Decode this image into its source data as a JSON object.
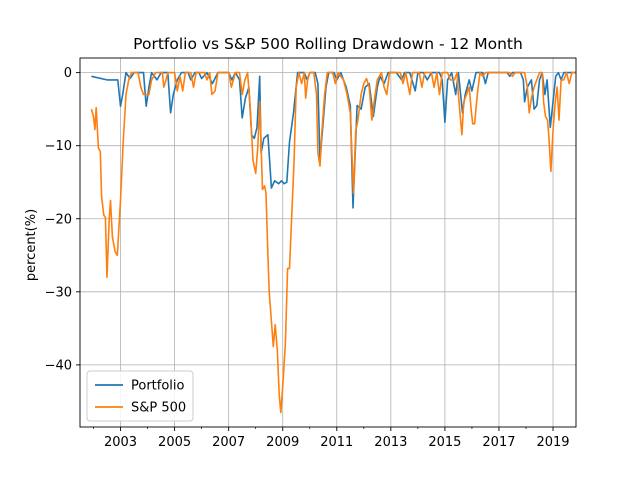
{
  "chart_data": {
    "type": "line",
    "title": "Portfolio vs S&P 500 Rolling Drawdown - 12 Month",
    "xlabel": "",
    "ylabel": "percent(%)",
    "xlim": [
      2001.5,
      2019.85
    ],
    "ylim": [
      -48.5,
      2
    ],
    "xticks": [
      2003,
      2005,
      2007,
      2009,
      2011,
      2013,
      2015,
      2017,
      2019
    ],
    "xtick_labels": [
      "2003",
      "2005",
      "2007",
      "2009",
      "2011",
      "2013",
      "2015",
      "2017",
      "2019"
    ],
    "yticks": [
      0,
      -10,
      -20,
      -30,
      -40
    ],
    "ytick_labels": [
      "0",
      "−10",
      "−20",
      "−30",
      "−40"
    ],
    "grid": true,
    "legend_position": "lower-left",
    "series": [
      {
        "name": "Portfolio",
        "color": "#1f77b4",
        "points": [
          [
            2001.92,
            -0.5
          ],
          [
            2002.5,
            -1.0
          ],
          [
            2002.9,
            -1.0
          ],
          [
            2003.0,
            -4.6
          ],
          [
            2003.08,
            -3.0
          ],
          [
            2003.2,
            0
          ],
          [
            2003.35,
            -0.8
          ],
          [
            2003.5,
            0
          ],
          [
            2003.85,
            0
          ],
          [
            2003.95,
            -4.6
          ],
          [
            2004.05,
            -2.0
          ],
          [
            2004.15,
            0
          ],
          [
            2004.35,
            -1.0
          ],
          [
            2004.5,
            0
          ],
          [
            2004.75,
            0
          ],
          [
            2004.85,
            -5.5
          ],
          [
            2004.95,
            -3.0
          ],
          [
            2005.1,
            -1.0
          ],
          [
            2005.25,
            0
          ],
          [
            2005.5,
            0
          ],
          [
            2005.6,
            -1.0
          ],
          [
            2005.75,
            0
          ],
          [
            2005.9,
            0
          ],
          [
            2006.0,
            -0.8
          ],
          [
            2006.2,
            0
          ],
          [
            2006.4,
            -1.5
          ],
          [
            2006.6,
            0
          ],
          [
            2007.0,
            0
          ],
          [
            2007.12,
            -1.0
          ],
          [
            2007.25,
            0
          ],
          [
            2007.4,
            -1.0
          ],
          [
            2007.5,
            -6.2
          ],
          [
            2007.62,
            -3.5
          ],
          [
            2007.75,
            -2.0
          ],
          [
            2007.85,
            -8.5
          ],
          [
            2007.95,
            -9.0
          ],
          [
            2008.05,
            -7.5
          ],
          [
            2008.15,
            -0.5
          ],
          [
            2008.2,
            -11.0
          ],
          [
            2008.3,
            -9.0
          ],
          [
            2008.45,
            -8.5
          ],
          [
            2008.58,
            -15.8
          ],
          [
            2008.7,
            -14.8
          ],
          [
            2008.85,
            -15.2
          ],
          [
            2008.95,
            -14.8
          ],
          [
            2009.05,
            -15.2
          ],
          [
            2009.15,
            -15.0
          ],
          [
            2009.25,
            -9.5
          ],
          [
            2009.4,
            -5.5
          ],
          [
            2009.55,
            0
          ],
          [
            2009.8,
            0
          ],
          [
            2009.9,
            -1.0
          ],
          [
            2010.0,
            0
          ],
          [
            2010.2,
            0
          ],
          [
            2010.3,
            -1.5
          ],
          [
            2010.38,
            -12.0
          ],
          [
            2010.5,
            -6.5
          ],
          [
            2010.6,
            -2.0
          ],
          [
            2010.7,
            0
          ],
          [
            2010.9,
            0
          ],
          [
            2011.0,
            -1.0
          ],
          [
            2011.15,
            0
          ],
          [
            2011.35,
            -2.0
          ],
          [
            2011.5,
            -4.5
          ],
          [
            2011.6,
            -18.5
          ],
          [
            2011.75,
            -4.5
          ],
          [
            2011.9,
            -5.0
          ],
          [
            2012.05,
            -2.0
          ],
          [
            2012.2,
            -1.5
          ],
          [
            2012.35,
            -6.0
          ],
          [
            2012.5,
            -2.0
          ],
          [
            2012.6,
            -0.5
          ],
          [
            2012.75,
            -1.5
          ],
          [
            2012.9,
            0
          ],
          [
            2013.2,
            0
          ],
          [
            2013.4,
            -1.0
          ],
          [
            2013.5,
            0
          ],
          [
            2013.7,
            0
          ],
          [
            2013.9,
            -2.5
          ],
          [
            2014.0,
            0
          ],
          [
            2014.2,
            0
          ],
          [
            2014.35,
            -1.0
          ],
          [
            2014.5,
            0
          ],
          [
            2014.8,
            0
          ],
          [
            2014.9,
            -1.0
          ],
          [
            2015.0,
            -6.8
          ],
          [
            2015.1,
            -1.0
          ],
          [
            2015.25,
            0
          ],
          [
            2015.4,
            -3.0
          ],
          [
            2015.5,
            0
          ],
          [
            2015.65,
            -5.5
          ],
          [
            2015.75,
            -3.0
          ],
          [
            2015.9,
            -1.0
          ],
          [
            2016.0,
            -2.5
          ],
          [
            2016.15,
            0
          ],
          [
            2016.4,
            0
          ],
          [
            2016.5,
            -1.5
          ],
          [
            2016.6,
            0
          ],
          [
            2017.0,
            0
          ],
          [
            2017.3,
            0
          ],
          [
            2017.4,
            -0.5
          ],
          [
            2017.5,
            0
          ],
          [
            2017.8,
            0
          ],
          [
            2017.9,
            -1.0
          ],
          [
            2017.95,
            -4.0
          ],
          [
            2018.05,
            -2.0
          ],
          [
            2018.2,
            -1.0
          ],
          [
            2018.3,
            -5.0
          ],
          [
            2018.4,
            -4.5
          ],
          [
            2018.5,
            -1.0
          ],
          [
            2018.6,
            0
          ],
          [
            2018.7,
            -3.0
          ],
          [
            2018.78,
            -1.0
          ],
          [
            2018.9,
            -7.5
          ],
          [
            2019.0,
            -4.0
          ],
          [
            2019.1,
            -0.5
          ],
          [
            2019.2,
            0
          ],
          [
            2019.3,
            -1.0
          ],
          [
            2019.4,
            0
          ],
          [
            2019.6,
            0
          ],
          [
            2019.85,
            0
          ]
        ]
      },
      {
        "name": "S&P 500",
        "color": "#ff7f0e",
        "points": [
          [
            2001.92,
            -5.0
          ],
          [
            2002.0,
            -6.0
          ],
          [
            2002.05,
            -7.8
          ],
          [
            2002.1,
            -4.8
          ],
          [
            2002.18,
            -10.3
          ],
          [
            2002.25,
            -10.8
          ],
          [
            2002.3,
            -17.0
          ],
          [
            2002.38,
            -19.5
          ],
          [
            2002.44,
            -19.8
          ],
          [
            2002.5,
            -28.0
          ],
          [
            2002.58,
            -20.0
          ],
          [
            2002.63,
            -17.5
          ],
          [
            2002.7,
            -22.5
          ],
          [
            2002.8,
            -24.5
          ],
          [
            2002.88,
            -25.0
          ],
          [
            2003.0,
            -17.5
          ],
          [
            2003.1,
            -9.5
          ],
          [
            2003.2,
            -3.0
          ],
          [
            2003.3,
            -1.0
          ],
          [
            2003.4,
            0
          ],
          [
            2003.5,
            0
          ],
          [
            2003.65,
            0
          ],
          [
            2003.75,
            -2.0
          ],
          [
            2003.85,
            -3.0
          ],
          [
            2004.05,
            -3.0
          ],
          [
            2004.15,
            -1.0
          ],
          [
            2004.3,
            0
          ],
          [
            2004.55,
            0
          ],
          [
            2004.6,
            -2.0
          ],
          [
            2004.68,
            -1.0
          ],
          [
            2004.75,
            0
          ],
          [
            2005.0,
            0
          ],
          [
            2005.1,
            -2.5
          ],
          [
            2005.2,
            -0.5
          ],
          [
            2005.3,
            -2.5
          ],
          [
            2005.4,
            0
          ],
          [
            2005.6,
            0
          ],
          [
            2005.7,
            -2.0
          ],
          [
            2005.8,
            0
          ],
          [
            2006.1,
            0
          ],
          [
            2006.2,
            -1.0
          ],
          [
            2006.3,
            0
          ],
          [
            2006.38,
            -3.0
          ],
          [
            2006.5,
            -2.5
          ],
          [
            2006.6,
            0
          ],
          [
            2006.75,
            0
          ],
          [
            2007.0,
            0
          ],
          [
            2007.1,
            -2.0
          ],
          [
            2007.25,
            0
          ],
          [
            2007.4,
            0
          ],
          [
            2007.5,
            -3.0
          ],
          [
            2007.6,
            -1.0
          ],
          [
            2007.7,
            0
          ],
          [
            2007.8,
            -5.0
          ],
          [
            2007.9,
            -12.0
          ],
          [
            2008.0,
            -13.8
          ],
          [
            2008.08,
            -10.0
          ],
          [
            2008.15,
            -4.0
          ],
          [
            2008.25,
            -16.0
          ],
          [
            2008.33,
            -15.5
          ],
          [
            2008.38,
            -16.5
          ],
          [
            2008.45,
            -25.0
          ],
          [
            2008.5,
            -30.0
          ],
          [
            2008.58,
            -34.0
          ],
          [
            2008.65,
            -37.5
          ],
          [
            2008.72,
            -34.5
          ],
          [
            2008.8,
            -38.0
          ],
          [
            2008.87,
            -44.0
          ],
          [
            2008.93,
            -46.5
          ],
          [
            2009.0,
            -43.0
          ],
          [
            2009.1,
            -37.0
          ],
          [
            2009.18,
            -26.8
          ],
          [
            2009.25,
            -26.8
          ],
          [
            2009.33,
            -20.0
          ],
          [
            2009.42,
            -12.0
          ],
          [
            2009.5,
            -2.0
          ],
          [
            2009.6,
            0
          ],
          [
            2009.7,
            -1.5
          ],
          [
            2009.8,
            0
          ],
          [
            2009.85,
            -3.5
          ],
          [
            2009.92,
            -1.0
          ],
          [
            2010.0,
            0
          ],
          [
            2010.15,
            0
          ],
          [
            2010.25,
            -3.0
          ],
          [
            2010.3,
            -11.0
          ],
          [
            2010.38,
            -12.8
          ],
          [
            2010.45,
            -8.0
          ],
          [
            2010.55,
            -3.0
          ],
          [
            2010.65,
            0
          ],
          [
            2010.85,
            0
          ],
          [
            2010.95,
            -1.5
          ],
          [
            2011.05,
            0
          ],
          [
            2011.25,
            -1.0
          ],
          [
            2011.38,
            -3.0
          ],
          [
            2011.5,
            -5.5
          ],
          [
            2011.62,
            -16.5
          ],
          [
            2011.7,
            -8.0
          ],
          [
            2011.78,
            -6.5
          ],
          [
            2011.9,
            -3.0
          ],
          [
            2012.0,
            -1.5
          ],
          [
            2012.1,
            -0.8
          ],
          [
            2012.2,
            -2.0
          ],
          [
            2012.3,
            -6.5
          ],
          [
            2012.4,
            -3.5
          ],
          [
            2012.5,
            -1.0
          ],
          [
            2012.65,
            0
          ],
          [
            2012.75,
            -2.0
          ],
          [
            2012.85,
            -3.0
          ],
          [
            2012.95,
            0
          ],
          [
            2013.1,
            0
          ],
          [
            2013.35,
            0
          ],
          [
            2013.45,
            -1.5
          ],
          [
            2013.55,
            0
          ],
          [
            2013.7,
            -3.0
          ],
          [
            2013.8,
            0
          ],
          [
            2014.05,
            0
          ],
          [
            2014.15,
            -2.0
          ],
          [
            2014.25,
            0
          ],
          [
            2014.5,
            0
          ],
          [
            2014.6,
            -2.0
          ],
          [
            2014.7,
            0
          ],
          [
            2014.8,
            -3.0
          ],
          [
            2014.9,
            0
          ],
          [
            2015.1,
            0
          ],
          [
            2015.2,
            -1.0
          ],
          [
            2015.35,
            -1.0
          ],
          [
            2015.45,
            0
          ],
          [
            2015.5,
            -3.0
          ],
          [
            2015.58,
            -6.5
          ],
          [
            2015.63,
            -8.5
          ],
          [
            2015.7,
            -4.0
          ],
          [
            2015.8,
            -3.0
          ],
          [
            2015.9,
            -2.0
          ],
          [
            2015.97,
            -5.0
          ],
          [
            2016.03,
            -7.0
          ],
          [
            2016.1,
            -7.0
          ],
          [
            2016.2,
            -3.0
          ],
          [
            2016.3,
            0
          ],
          [
            2016.4,
            -0.5
          ],
          [
            2016.5,
            0
          ],
          [
            2017.0,
            0
          ],
          [
            2017.4,
            0
          ],
          [
            2017.5,
            -0.5
          ],
          [
            2017.6,
            0
          ],
          [
            2017.85,
            0
          ],
          [
            2017.95,
            0
          ],
          [
            2018.05,
            -2.0
          ],
          [
            2018.12,
            -5.5
          ],
          [
            2018.2,
            -3.5
          ],
          [
            2018.3,
            -2.0
          ],
          [
            2018.4,
            -1.0
          ],
          [
            2018.5,
            0
          ],
          [
            2018.6,
            0
          ],
          [
            2018.65,
            -4.0
          ],
          [
            2018.72,
            -6.0
          ],
          [
            2018.8,
            -6.5
          ],
          [
            2018.85,
            -9.0
          ],
          [
            2018.92,
            -13.5
          ],
          [
            2019.0,
            -8.0
          ],
          [
            2019.08,
            -4.0
          ],
          [
            2019.15,
            -2.0
          ],
          [
            2019.22,
            -6.5
          ],
          [
            2019.3,
            -1.0
          ],
          [
            2019.4,
            -1.0
          ],
          [
            2019.5,
            0
          ],
          [
            2019.6,
            -1.5
          ],
          [
            2019.7,
            0
          ],
          [
            2019.85,
            0
          ]
        ]
      }
    ]
  }
}
